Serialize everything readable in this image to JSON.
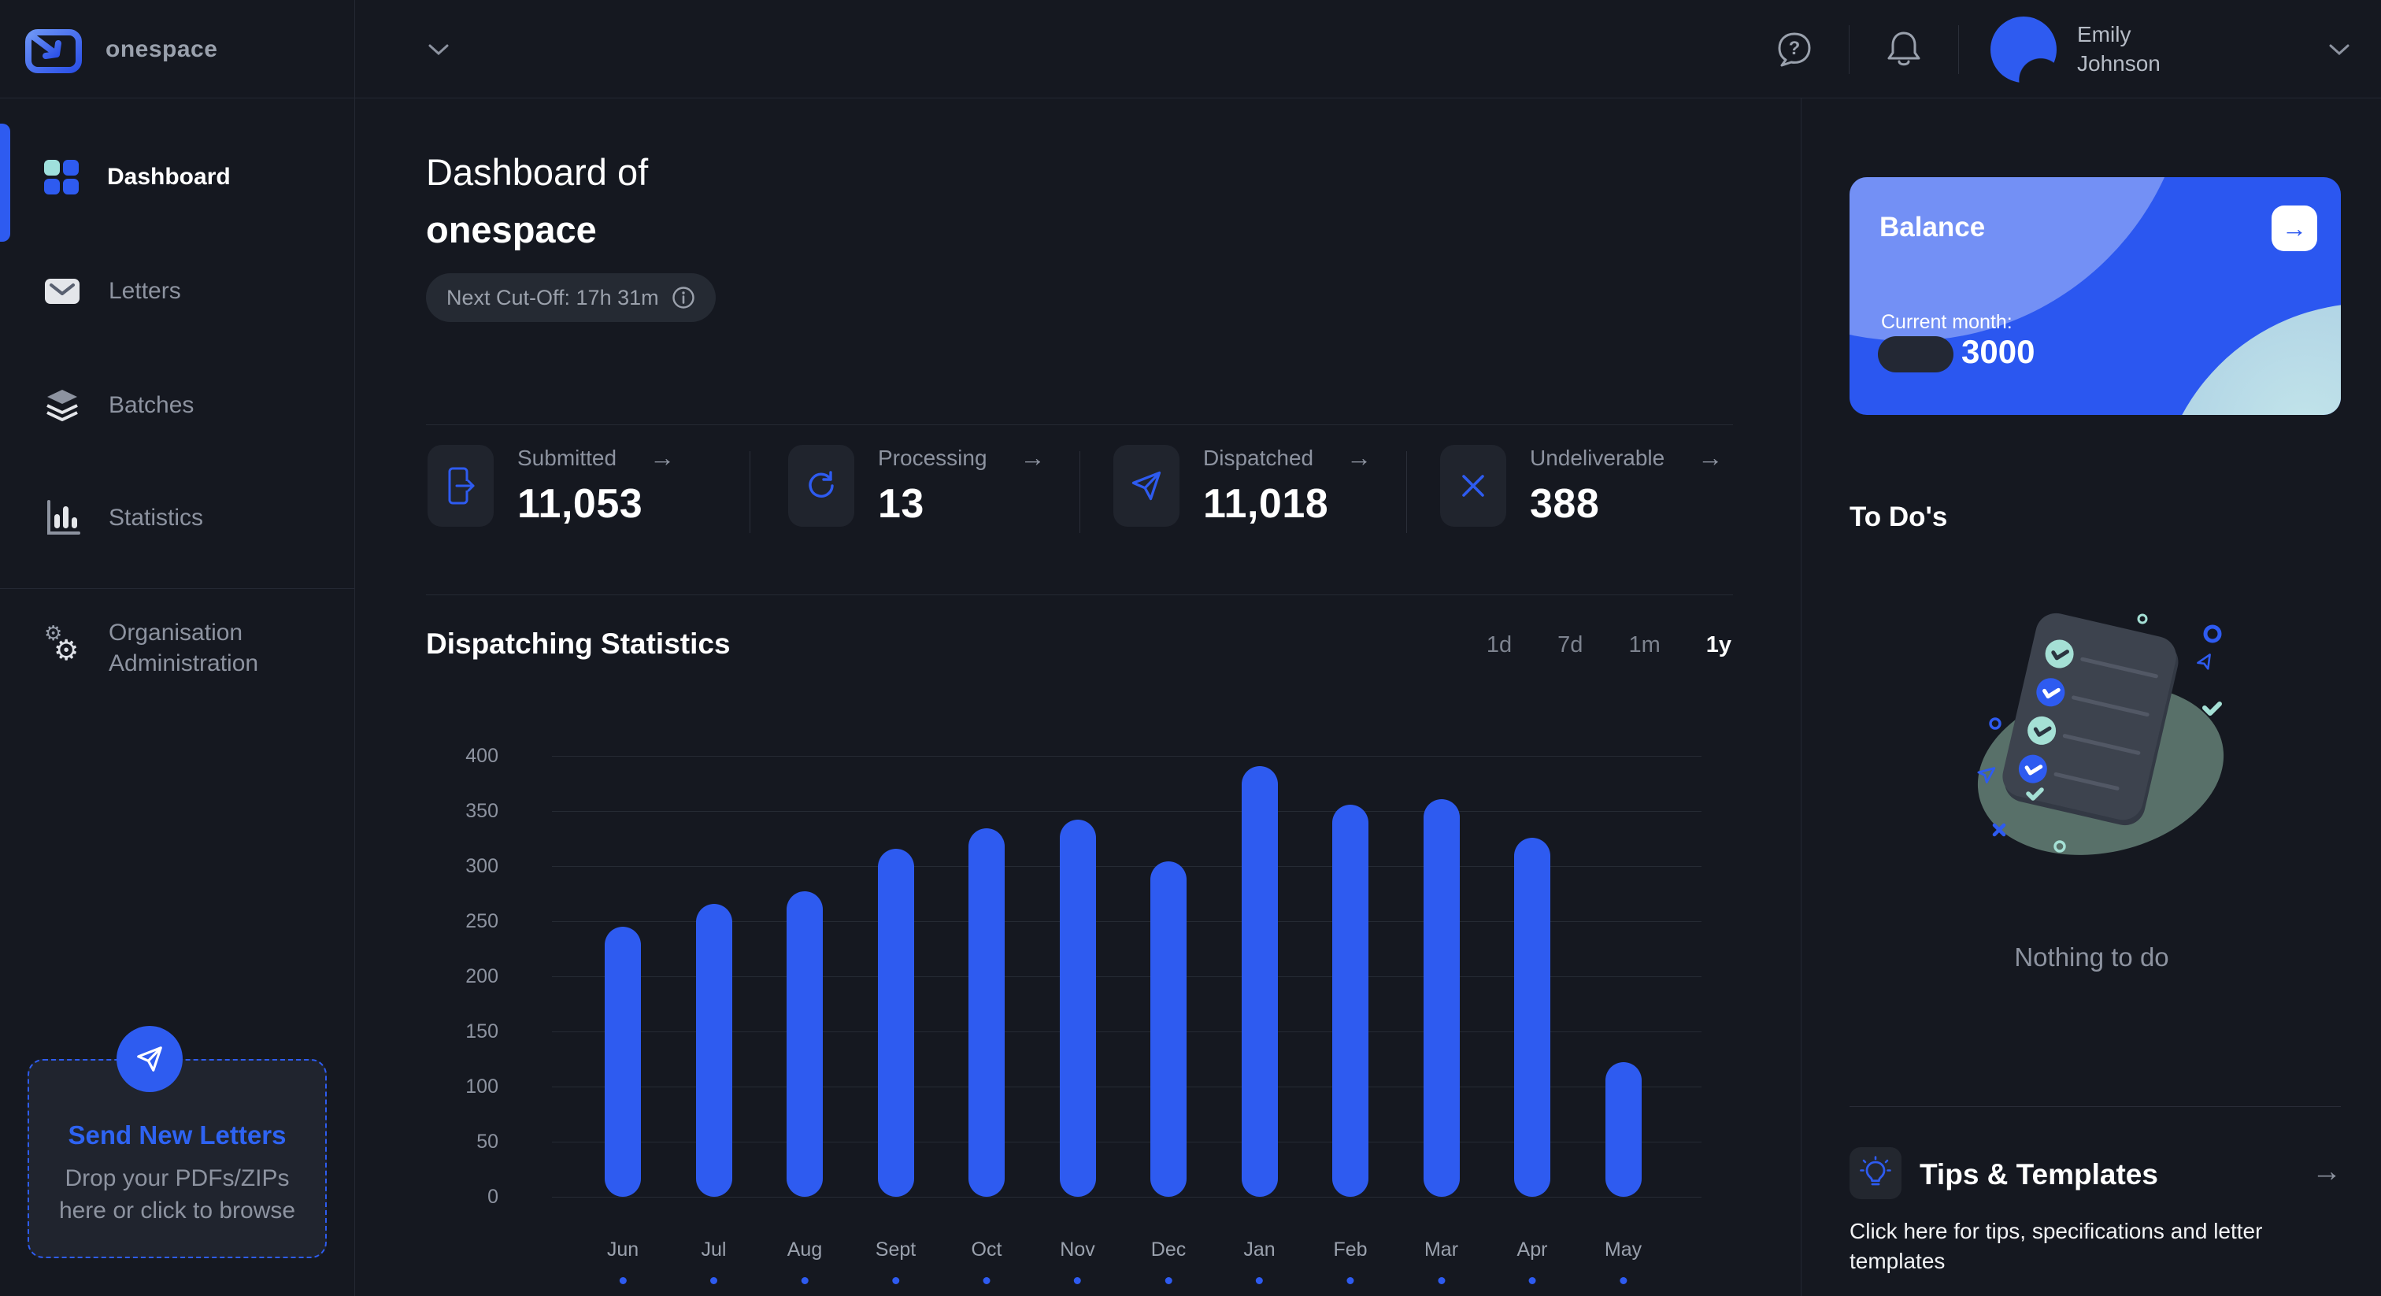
{
  "topbar": {
    "brand": "onespace",
    "user_name": "Emily Johnson",
    "icons": [
      "help-bubble-icon",
      "bell-icon",
      "avatar",
      "chevron-down-icon"
    ]
  },
  "sidebar": {
    "items": [
      {
        "label": "Dashboard",
        "icon": "dashboard-grid-icon",
        "active": true
      },
      {
        "label": "Letters",
        "icon": "envelope-icon",
        "active": false
      },
      {
        "label": "Batches",
        "icon": "layers-icon",
        "active": false
      },
      {
        "label": "Statistics",
        "icon": "bar-chart-icon",
        "active": false
      },
      {
        "label": "Organisation Administration",
        "icon": "gears-icon",
        "active": false
      }
    ],
    "dropzone": {
      "icon": "paper-plane-icon",
      "title": "Send New Letters",
      "subtitle": "Drop your PDFs/ZIPs here or click to browse"
    }
  },
  "header": {
    "title_prefix": "Dashboard of",
    "title_org": "onespace",
    "cutoff_label": "Next Cut-Off: 17h 31m",
    "cutoff_icon": "info-circle-icon"
  },
  "stats": [
    {
      "label": "Submitted",
      "value": "11,053",
      "icon": "file-export-icon",
      "arrow": "→"
    },
    {
      "label": "Processing",
      "value": "13",
      "icon": "refresh-icon",
      "arrow": "→"
    },
    {
      "label": "Dispatched",
      "value": "11,018",
      "icon": "paper-plane-icon",
      "arrow": "→"
    },
    {
      "label": "Undeliverable",
      "value": "388",
      "icon": "x-mark-icon",
      "arrow": "→"
    }
  ],
  "chart_section": {
    "title": "Dispatching Statistics",
    "ranges": [
      {
        "label": "1d",
        "active": false
      },
      {
        "label": "7d",
        "active": false
      },
      {
        "label": "1m",
        "active": false
      },
      {
        "label": "1y",
        "active": true
      }
    ]
  },
  "chart_data": {
    "type": "bar",
    "title": "Dispatching Statistics",
    "categories": [
      "Jun",
      "Jul",
      "Aug",
      "Sept",
      "Oct",
      "Nov",
      "Dec",
      "Jan",
      "Feb",
      "Mar",
      "Apr",
      "May"
    ],
    "values": [
      245,
      266,
      277,
      316,
      334,
      342,
      304,
      391,
      356,
      361,
      326,
      122
    ],
    "xlabel": "",
    "ylabel": "",
    "ylim": [
      0,
      400
    ],
    "yticks": [
      0,
      50,
      100,
      150,
      200,
      250,
      300,
      350,
      400
    ],
    "grid": true,
    "legend": false,
    "bar_color": "#2e5bf0",
    "marker_dot_color": "#2e5bf0"
  },
  "rightbar": {
    "balance": {
      "title": "Balance",
      "arrow": "→",
      "current_month_label": "Current month:",
      "amount": "3000"
    },
    "todos": {
      "title": "To Do's",
      "empty_text": "Nothing to do",
      "illustration": "checklist-clipboard-illustration"
    },
    "tips": {
      "icon": "lightbulb-icon",
      "title": "Tips & Templates",
      "arrow": "→",
      "subtitle": "Click here for tips, specifications and letter templates"
    }
  },
  "colors": {
    "accent_blue": "#2e5bf0",
    "teal": "#9fe0dc",
    "background": "#151820",
    "panel": "#20242d",
    "text_muted": "#8d93a0"
  }
}
